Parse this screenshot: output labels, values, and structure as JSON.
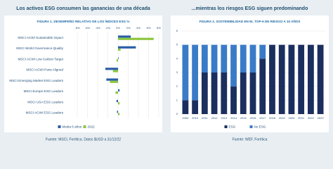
{
  "headings": [
    "Los activos ESG consumen las ganancias de una década",
    "...mientras los riesgos ESG siguen predominando"
  ],
  "sources": [
    "Fuente: MSCI, Forética. Datos $USD a 31/12/22",
    "Fuente: WEF, Forética"
  ],
  "chart_data": [
    {
      "type": "barh",
      "title": "FIGURA 1. DESEMPEÑO RELATIVO DE LOS ÍNDICES ESG %",
      "categories": [
        "MSCI ACWI Sustainable impact",
        "MSCI World Governance-Quality",
        "MSCI ACWI Low Carbon Target",
        "MSCI ACWI Paris Aligned",
        "MSCI Emerging Market ESG Leaders",
        "MSCI Europe ESG Leaders",
        "MSCI USA ESG Leaders",
        "MSCI ACWI ESG Leaders"
      ],
      "series": [
        {
          "name": "Media 5 años",
          "color": "#2a5ea8",
          "values": [
            2.5,
            3.5,
            0.1,
            -2.5,
            -2.3,
            0.3,
            -0.3,
            -0.2
          ]
        },
        {
          "name": "2022",
          "color": "#8cc63f",
          "values": [
            7,
            0.5,
            -0.3,
            -1,
            -1.6,
            -0.5,
            0.3,
            0.3
          ]
        }
      ],
      "xlim": [
        -8,
        8
      ],
      "xticks": [
        {
          "value": -8,
          "label": "-8%"
        },
        {
          "value": -6,
          "label": "-6%"
        },
        {
          "value": -4,
          "label": "-4%"
        },
        {
          "value": -2,
          "label": "-2%"
        },
        {
          "value": 0,
          "label": "0%"
        },
        {
          "value": 2,
          "label": "2%"
        },
        {
          "value": 4,
          "label": "4%"
        },
        {
          "value": 6,
          "label": "6%"
        },
        {
          "value": 8,
          "label": "8%"
        }
      ],
      "grid": true,
      "legend": "bottom"
    },
    {
      "type": "stacked",
      "title": "FIGURA 2. SOSTENIBILIDAD EN EL TOP-6 DE RIESGO A 10 AÑOS",
      "categories": [
        "2009",
        "2010",
        "2011",
        "2012",
        "2013",
        "2014",
        "2015",
        "2016",
        "2017",
        "2018",
        "2019",
        "2020",
        "2021",
        "2022",
        "2023"
      ],
      "series": [
        {
          "name": "ESG",
          "color": "#1b2f5e",
          "values": [
            1,
            1,
            3,
            3,
            3,
            2,
            3,
            3,
            4,
            5,
            5,
            5,
            5,
            5,
            5
          ]
        },
        {
          "name": "No ESG",
          "color": "#3a7bc8",
          "values": [
            4,
            4,
            2,
            2,
            2,
            3,
            2,
            2,
            1,
            0,
            0,
            0,
            0,
            0,
            0
          ]
        }
      ],
      "ylim": [
        0,
        6
      ],
      "yticks": [
        0,
        1,
        2,
        3,
        4,
        5,
        6
      ],
      "grid": true,
      "legend": "bottom"
    }
  ]
}
